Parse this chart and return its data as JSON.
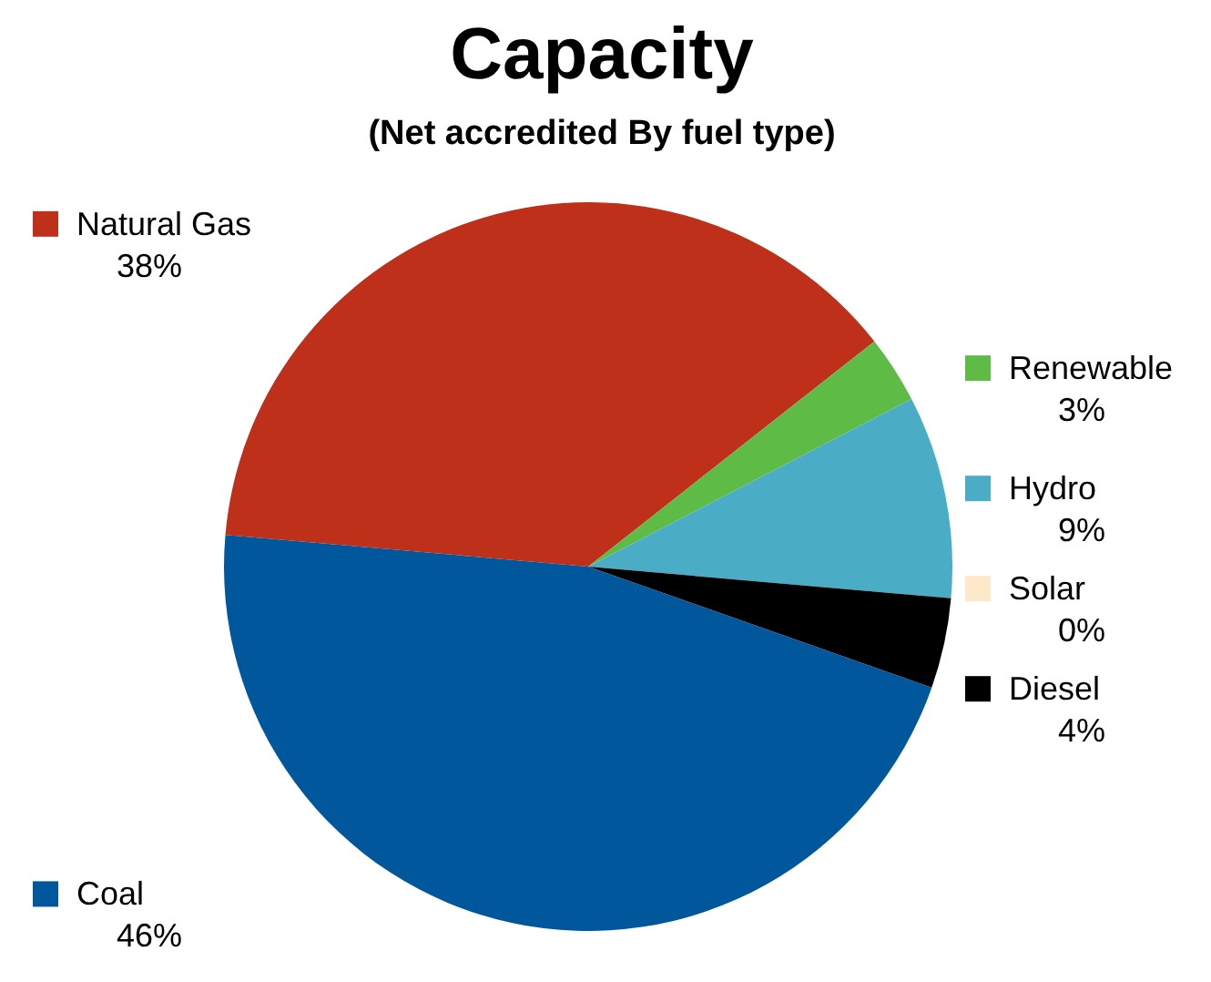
{
  "chart_data": {
    "type": "pie",
    "title": "Capacity",
    "subtitle": "(Net accredited By fuel type)",
    "categories": [
      "Natural Gas",
      "Renewable",
      "Hydro",
      "Solar",
      "Diesel",
      "Coal"
    ],
    "values": [
      38,
      3,
      9,
      0,
      4,
      46
    ],
    "colors": [
      "#be3019",
      "#5dbb46",
      "#4bacc6",
      "#fde9c9",
      "#000000",
      "#01579b"
    ],
    "value_labels": [
      "38%",
      "3%",
      "9%",
      "0%",
      "4%",
      "46%"
    ],
    "legend": "right"
  }
}
